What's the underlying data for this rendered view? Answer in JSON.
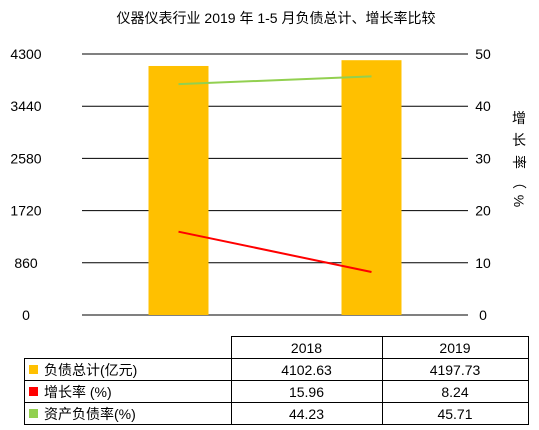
{
  "chart_data": {
    "type": "bar-line-combo",
    "title": "仪器仪表行业 2019 年 1-5 月负债总计、增长率比较",
    "categories": [
      "2018",
      "2019"
    ],
    "bar_series": {
      "name": "负债总计(亿元)",
      "values": [
        4102.63,
        4197.73
      ],
      "color": "#FFC000",
      "axis": "left",
      "display": [
        "4102.63",
        "4197.73"
      ]
    },
    "line_series": [
      {
        "name": "增长率 (%)",
        "values": [
          15.96,
          8.24
        ],
        "color": "#FF0000",
        "axis": "right",
        "display": [
          "15.96",
          "8.24"
        ]
      },
      {
        "name": "资产负债率(%)",
        "values": [
          44.23,
          45.71
        ],
        "color": "#92D050",
        "axis": "right",
        "display": [
          "44.23",
          "45.71"
        ]
      }
    ],
    "y_left": {
      "ylim": [
        0,
        4300
      ],
      "ticks": [
        "0",
        "860",
        "1720",
        "2580",
        "3440",
        "4300"
      ]
    },
    "y_right": {
      "label": "增长率（%）",
      "ylim": [
        0,
        50
      ],
      "ticks": [
        "0",
        "10",
        "20",
        "30",
        "40",
        "50"
      ]
    },
    "grid": true,
    "legend": "data-table-below"
  }
}
